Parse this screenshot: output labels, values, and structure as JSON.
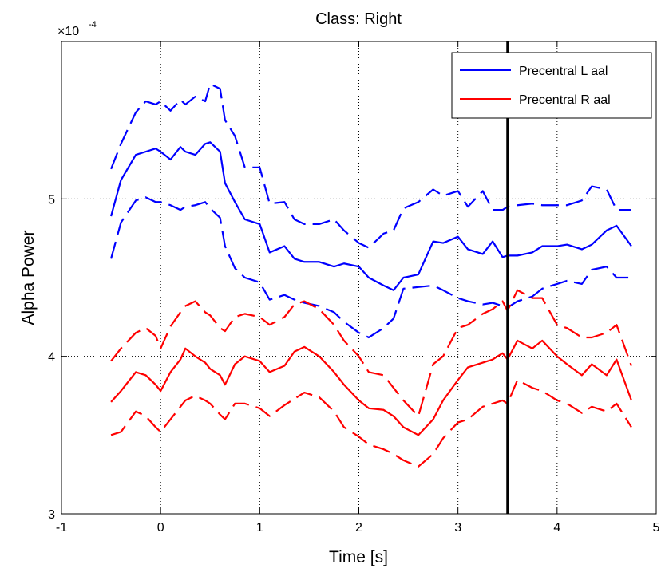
{
  "chart_data": {
    "type": "line",
    "title": "Class: Right",
    "xlabel": "Time [s]",
    "ylabel": "Alpha Power",
    "y_exponent_label": "×10",
    "y_exponent_power": "-4",
    "xlim": [
      -1,
      5
    ],
    "ylim": [
      3,
      6
    ],
    "x_ticks": [
      -1,
      0,
      1,
      2,
      3,
      4,
      5
    ],
    "x_tick_labels": [
      "-1",
      "0",
      "1",
      "2",
      "3",
      "4",
      "5"
    ],
    "y_ticks": [
      3,
      4,
      5
    ],
    "y_tick_labels": [
      "3",
      "4",
      "5"
    ],
    "grid": true,
    "legend_position": "top-right",
    "vline_x": 3.5,
    "x": [
      -0.5,
      -0.4,
      -0.25,
      -0.15,
      -0.05,
      0,
      0.1,
      0.2,
      0.25,
      0.35,
      0.45,
      0.5,
      0.6,
      0.65,
      0.75,
      0.85,
      1,
      1.1,
      1.25,
      1.35,
      1.45,
      1.6,
      1.75,
      1.85,
      2,
      2.1,
      2.25,
      2.35,
      2.45,
      2.6,
      2.75,
      2.85,
      3,
      3.1,
      3.25,
      3.35,
      3.45,
      3.5,
      3.6,
      3.75,
      3.85,
      4,
      4.1,
      4.25,
      4.35,
      4.5,
      4.6,
      4.75
    ],
    "series": [
      {
        "name": "Precentral L aal",
        "color": "#0000ff",
        "values": [
          4.89,
          5.12,
          5.28,
          5.3,
          5.32,
          5.3,
          5.25,
          5.33,
          5.3,
          5.28,
          5.35,
          5.36,
          5.3,
          5.1,
          4.98,
          4.87,
          4.84,
          4.66,
          4.7,
          4.62,
          4.6,
          4.6,
          4.57,
          4.59,
          4.57,
          4.5,
          4.45,
          4.42,
          4.5,
          4.52,
          4.73,
          4.72,
          4.76,
          4.68,
          4.65,
          4.73,
          4.63,
          4.64,
          4.64,
          4.66,
          4.7,
          4.7,
          4.71,
          4.68,
          4.71,
          4.8,
          4.83,
          4.7
        ]
      },
      {
        "name": "",
        "color": "#0000ff",
        "dashed": true,
        "values": [
          5.19,
          5.35,
          5.55,
          5.62,
          5.6,
          5.62,
          5.56,
          5.63,
          5.6,
          5.65,
          5.62,
          5.73,
          5.7,
          5.5,
          5.4,
          5.2,
          5.2,
          4.97,
          4.98,
          4.87,
          4.84,
          4.84,
          4.87,
          4.8,
          4.72,
          4.69,
          4.78,
          4.8,
          4.94,
          4.98,
          5.06,
          5.02,
          5.05,
          4.95,
          5.05,
          4.93,
          4.93,
          4.95,
          4.96,
          4.97,
          4.96,
          4.96,
          4.96,
          4.99,
          5.08,
          5.06,
          4.93,
          4.93
        ]
      },
      {
        "name": "",
        "color": "#0000ff",
        "dashed": true,
        "values": [
          4.62,
          4.85,
          4.99,
          5.01,
          4.98,
          4.98,
          4.96,
          4.93,
          4.95,
          4.96,
          4.98,
          4.94,
          4.88,
          4.7,
          4.56,
          4.5,
          4.47,
          4.36,
          4.39,
          4.36,
          4.34,
          4.32,
          4.28,
          4.22,
          4.15,
          4.12,
          4.18,
          4.24,
          4.43,
          4.44,
          4.45,
          4.42,
          4.37,
          4.35,
          4.33,
          4.34,
          4.32,
          4.31,
          4.35,
          4.38,
          4.43,
          4.46,
          4.48,
          4.46,
          4.55,
          4.57,
          4.5,
          4.5
        ]
      },
      {
        "name": "Precentral R aal",
        "color": "#ff0000",
        "values": [
          3.71,
          3.78,
          3.9,
          3.88,
          3.82,
          3.78,
          3.9,
          3.98,
          4.05,
          4.0,
          3.96,
          3.92,
          3.88,
          3.82,
          3.95,
          4.0,
          3.97,
          3.9,
          3.94,
          4.03,
          4.06,
          4.0,
          3.9,
          3.82,
          3.72,
          3.67,
          3.66,
          3.62,
          3.55,
          3.5,
          3.6,
          3.72,
          3.85,
          3.93,
          3.96,
          3.98,
          4.02,
          3.98,
          4.1,
          4.05,
          4.1,
          4.0,
          3.95,
          3.88,
          3.95,
          3.88,
          3.98,
          3.72
        ]
      },
      {
        "name": "",
        "color": "#ff0000",
        "dashed": true,
        "values": [
          3.97,
          4.05,
          4.15,
          4.18,
          4.13,
          4.05,
          4.19,
          4.28,
          4.32,
          4.35,
          4.28,
          4.26,
          4.18,
          4.16,
          4.25,
          4.27,
          4.25,
          4.2,
          4.25,
          4.33,
          4.35,
          4.3,
          4.2,
          4.1,
          4.0,
          3.9,
          3.88,
          3.8,
          3.72,
          3.62,
          3.95,
          4.0,
          4.18,
          4.2,
          4.27,
          4.3,
          4.35,
          4.29,
          4.42,
          4.37,
          4.37,
          4.2,
          4.18,
          4.12,
          4.12,
          4.15,
          4.2,
          3.94
        ]
      },
      {
        "name": "",
        "color": "#ff0000",
        "dashed": true,
        "values": [
          3.5,
          3.52,
          3.65,
          3.62,
          3.55,
          3.52,
          3.6,
          3.68,
          3.72,
          3.75,
          3.72,
          3.7,
          3.63,
          3.6,
          3.7,
          3.7,
          3.67,
          3.62,
          3.69,
          3.73,
          3.77,
          3.74,
          3.65,
          3.55,
          3.49,
          3.44,
          3.41,
          3.38,
          3.34,
          3.3,
          3.38,
          3.48,
          3.58,
          3.6,
          3.68,
          3.7,
          3.72,
          3.7,
          3.85,
          3.8,
          3.78,
          3.72,
          3.7,
          3.64,
          3.68,
          3.65,
          3.7,
          3.55
        ]
      }
    ]
  }
}
